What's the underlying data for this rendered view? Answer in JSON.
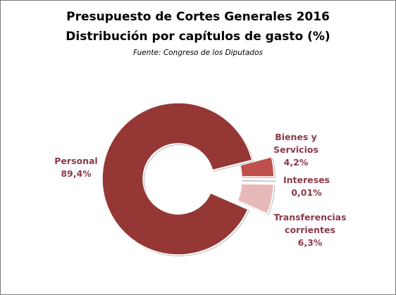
{
  "chart_data": {
    "type": "pie",
    "style": "doughnut-exploded",
    "title": "Presupuesto  de Cortes Generales 2016",
    "subtitle": "Distribución  por capítulos  de gasto (%)",
    "source": "Fuente:  Congreso de los Diputados",
    "slices": [
      {
        "category_lines": [
          "Personal"
        ],
        "value": 89.4,
        "value_label": "89,4%",
        "color": "#953735",
        "exploded": false
      },
      {
        "category_lines": [
          "Bienes y",
          "Servicios"
        ],
        "value": 4.2,
        "value_label": "4,2%",
        "color": "#c0504d",
        "exploded": true
      },
      {
        "category_lines": [
          "Intereses"
        ],
        "value": 0.01,
        "value_label": "0,01%",
        "color": "#d99694",
        "exploded": true
      },
      {
        "category_lines": [
          "Transferencias",
          "corrientes"
        ],
        "value": 6.3,
        "value_label": "6,3%",
        "color": "#e6b9b8",
        "exploded": true
      }
    ],
    "legend": "none",
    "label_color": "#8b3a4a"
  }
}
